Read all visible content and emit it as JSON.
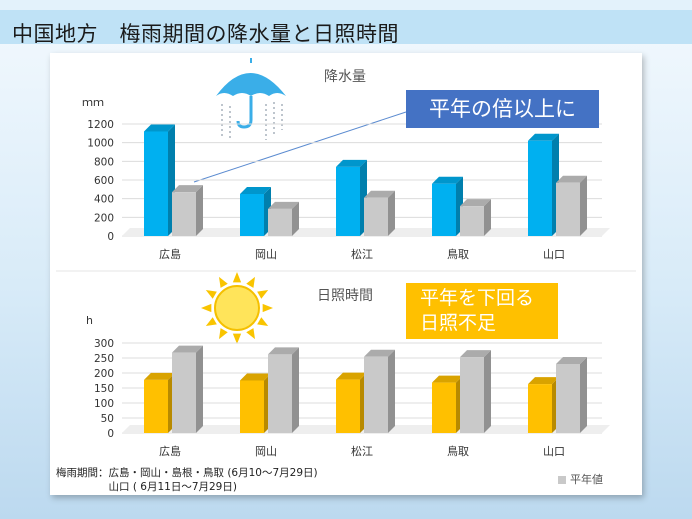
{
  "header": {
    "title": "中国地方　梅雨期間の降水量と日照時間"
  },
  "callouts": {
    "rain": "平年の倍以上に",
    "sun_line1": "平年を下回る",
    "sun_line2": "日照不足"
  },
  "footnote": {
    "line1": "梅雨期間：広島・岡山・島根・鳥取 (6月10〜7月29日)",
    "line2": "　　　　　山口 ( 6月11日〜7月29日)"
  },
  "legend": {
    "normal": "平年値"
  },
  "colors": {
    "rain": "#00b0f0",
    "sun": "#ffc000",
    "normal": "#c9c9c9"
  },
  "icons": {
    "rain": "umbrella-rain-icon",
    "sun": "sun-icon"
  },
  "chart_data": [
    {
      "type": "bar",
      "title": "降水量",
      "ylabel": "ｍｍ",
      "categories": [
        "広島",
        "岡山",
        "松江",
        "鳥取",
        "山口"
      ],
      "yticks": [
        0,
        200,
        400,
        600,
        800,
        1000,
        1200
      ],
      "ylim": [
        0,
        1200
      ],
      "series": [
        {
          "values": [
            1120,
            450,
            740,
            560,
            1020
          ]
        },
        {
          "name": "平年値",
          "values": [
            470,
            290,
            410,
            320,
            570
          ]
        }
      ]
    },
    {
      "type": "bar",
      "title": "日照時間",
      "ylabel": "h",
      "categories": [
        "広島",
        "岡山",
        "松江",
        "鳥取",
        "山口"
      ],
      "yticks": [
        0,
        50,
        100,
        150,
        200,
        250,
        300
      ],
      "ylim": [
        0,
        300
      ],
      "series": [
        {
          "values": [
            177,
            175,
            178,
            168,
            163
          ]
        },
        {
          "name": "平年値",
          "values": [
            268,
            262,
            254,
            253,
            230
          ]
        }
      ]
    }
  ]
}
